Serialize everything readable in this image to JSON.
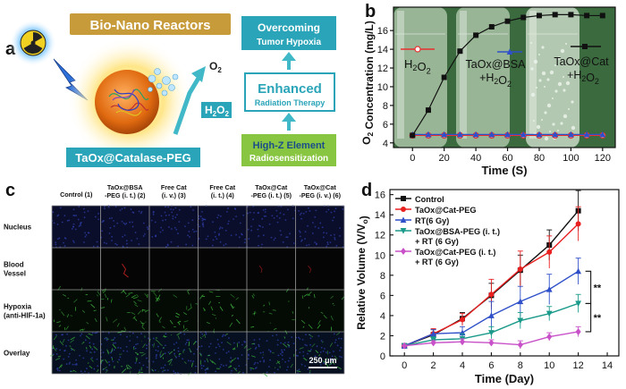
{
  "panels": {
    "a": {
      "letter": "a",
      "banner": "Bio-Nano Reactors",
      "o2": "O",
      "o2_sub": "2",
      "h2o2": "H",
      "h2o2_sub1": "2",
      "h2o2_mid": "O",
      "h2o2_sub2": "2",
      "box1_line1": "Overcoming",
      "box1_line2": "Tumor Hypoxia",
      "box2_line1": "Enhanced",
      "box2_line2": "Radiation Therapy",
      "box3_line1": "High-Z Element",
      "box3_line2": "Radiosensitization",
      "label": "TaOx@Catalase-PEG",
      "colors": {
        "banner": "#c79a3a",
        "teal": "#2aa4b8",
        "green": "#88c540",
        "arrow": "#40b8c8"
      }
    },
    "b": {
      "letter": "b"
    },
    "c": {
      "letter": "c",
      "columns": [
        "Control (1)",
        "TaOx@BSA\n-PEG (i. t.) (2)",
        "Free Cat\n(i. v.) (3)",
        "Free Cat\n(i. t.) (4)",
        "TaOx@Cat\n-PEG (i. t.) (5)",
        "TaOx@Cat\n-PEG (i. v.) (6)"
      ],
      "rows": [
        "Nucleus",
        "Blood\nVessel",
        "Hypoxia\n(anti-HIF-1a)",
        "Overlay"
      ],
      "scale_bar": "250 μm"
    },
    "d": {
      "letter": "d"
    }
  },
  "chart_data": [
    {
      "type": "line",
      "panel": "b",
      "x": [
        0,
        10,
        20,
        30,
        40,
        50,
        60,
        70,
        80,
        90,
        100,
        110,
        120
      ],
      "series": [
        {
          "name": "H2O2",
          "values": [
            4.8,
            4.8,
            4.8,
            4.8,
            4.8,
            4.8,
            4.8,
            4.8,
            4.8,
            4.8,
            4.8,
            4.8,
            4.8
          ],
          "color": "#e83030",
          "marker": "circle-open"
        },
        {
          "name": "TaOx@BSA +H2O2",
          "values": [
            4.9,
            4.9,
            4.9,
            4.9,
            4.9,
            4.9,
            4.9,
            4.9,
            4.9,
            4.9,
            4.9,
            4.9,
            4.9
          ],
          "color": "#2f50c8",
          "marker": "triangle"
        },
        {
          "name": "TaOx@Cat +H2O2",
          "values": [
            4.8,
            7.5,
            11.0,
            13.8,
            15.5,
            16.4,
            17.0,
            17.4,
            17.6,
            17.7,
            17.7,
            17.6,
            17.6
          ],
          "color": "#111111",
          "marker": "square"
        }
      ],
      "labels_in_plot": [
        {
          "base": "H",
          "sub1": "2",
          "mid": "O",
          "sub2": "2",
          "tail": ""
        },
        {
          "base": "TaOx@BSA",
          "line2": "+H",
          "sub1": "2",
          "mid": "O",
          "sub2": "2"
        },
        {
          "base": "TaOx@Cat",
          "line2": "+H",
          "sub1": "2",
          "mid": "O",
          "sub2": "2"
        }
      ],
      "xlabel": "Time (S)",
      "ylabel_main": "O",
      "ylabel_sub": "2",
      "ylabel_rest": " Concentration (mg/L)",
      "xlim": [
        -12,
        128
      ],
      "ylim": [
        3.5,
        18.5
      ],
      "xticks": [
        0,
        20,
        40,
        60,
        80,
        100,
        120
      ],
      "yticks": [
        4,
        6,
        8,
        10,
        12,
        14,
        16
      ]
    },
    {
      "type": "line",
      "panel": "d",
      "x": [
        0,
        2,
        4,
        6,
        8,
        10,
        12
      ],
      "series": [
        {
          "name": "Control",
          "values": [
            1.0,
            2.1,
            3.7,
            6.0,
            8.5,
            11.0,
            14.4
          ],
          "errors": [
            0.2,
            0.5,
            0.6,
            1.2,
            1.5,
            1.5,
            2.0
          ],
          "color": "#111111",
          "marker": "square"
        },
        {
          "name": "TaOx@Cat-PEG",
          "values": [
            1.0,
            2.2,
            3.6,
            6.1,
            8.6,
            10.3,
            13.1
          ],
          "errors": [
            0.2,
            0.5,
            0.6,
            1.5,
            1.8,
            1.6,
            1.7
          ],
          "color": "#e82020",
          "marker": "circle"
        },
        {
          "name": "RT(6 Gy)",
          "values": [
            1.0,
            2.2,
            2.3,
            4.0,
            5.4,
            6.6,
            8.4
          ],
          "errors": [
            0.2,
            0.4,
            0.6,
            1.4,
            1.5,
            1.5,
            1.3
          ],
          "color": "#2f50c8",
          "marker": "triangle"
        },
        {
          "name": "TaOx@BSA-PEG (i. t.)\n+ RT (6 Gy)",
          "values": [
            1.0,
            1.6,
            1.7,
            2.3,
            3.5,
            4.2,
            5.2
          ],
          "errors": [
            0.2,
            0.3,
            0.5,
            0.6,
            0.8,
            0.7,
            0.9
          ],
          "color": "#1a9a8a",
          "marker": "triangle-down"
        },
        {
          "name": "TaOx@Cat-PEG (i. t.)\n+ RT (6 Gy)",
          "values": [
            1.0,
            1.3,
            1.4,
            1.3,
            1.1,
            1.9,
            2.4
          ],
          "errors": [
            0.1,
            0.2,
            0.3,
            0.3,
            0.4,
            0.4,
            0.5
          ],
          "color": "#c850c8",
          "marker": "diamond"
        }
      ],
      "annotations": [
        "**",
        "**"
      ],
      "xlabel": "Time (Day)",
      "ylabel_main": "Relative Volume (V/V",
      "ylabel_sub": "o",
      "ylabel_rest": ")",
      "xlim": [
        -1,
        14.8
      ],
      "ylim": [
        0,
        16.5
      ],
      "xticks": [
        0,
        2,
        4,
        6,
        8,
        10,
        12,
        14
      ],
      "yticks": [
        0,
        2,
        4,
        6,
        8,
        10,
        12,
        14,
        16
      ],
      "legend": "top-left"
    }
  ]
}
